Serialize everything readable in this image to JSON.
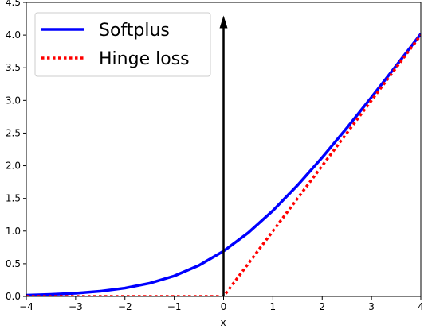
{
  "chart_data": {
    "type": "line",
    "title": "",
    "xlabel": "x",
    "ylabel": "",
    "xlim": [
      -4,
      4
    ],
    "ylim": [
      0,
      4.5
    ],
    "x_ticks": [
      -4,
      -3,
      -2,
      -1,
      0,
      1,
      2,
      3,
      4
    ],
    "x_tick_labels": [
      "−4",
      "−3",
      "−2",
      "−1",
      "0",
      "1",
      "2",
      "3",
      "4"
    ],
    "y_ticks": [
      0,
      0.5,
      1,
      1.5,
      2,
      2.5,
      3,
      3.5,
      4,
      4.5
    ],
    "y_tick_labels": [
      "0.0",
      "0.5",
      "1.0",
      "1.5",
      "2.0",
      "2.5",
      "3.0",
      "3.5",
      "4.0",
      "4.5"
    ],
    "grid": false,
    "legend_position": "top-left",
    "series": [
      {
        "name": "Softplus",
        "color": "#0000ff",
        "style": "solid",
        "x": [
          -4,
          -3.5,
          -3,
          -2.5,
          -2,
          -1.5,
          -1,
          -0.5,
          0,
          0.5,
          1,
          1.5,
          2,
          2.5,
          3,
          3.5,
          4
        ],
        "y": [
          0.018,
          0.03,
          0.049,
          0.079,
          0.127,
          0.201,
          0.313,
          0.474,
          0.693,
          0.974,
          1.313,
          1.701,
          2.127,
          2.579,
          3.049,
          3.53,
          4.018
        ]
      },
      {
        "name": "Hinge loss",
        "color": "#ff0000",
        "style": "dotted",
        "x": [
          -4,
          0,
          4
        ],
        "y": [
          0,
          0,
          4
        ]
      }
    ],
    "annotations": [
      {
        "type": "arrow",
        "x": 0,
        "y_start": 0,
        "y_end": 4.3,
        "color": "#000000"
      }
    ]
  }
}
